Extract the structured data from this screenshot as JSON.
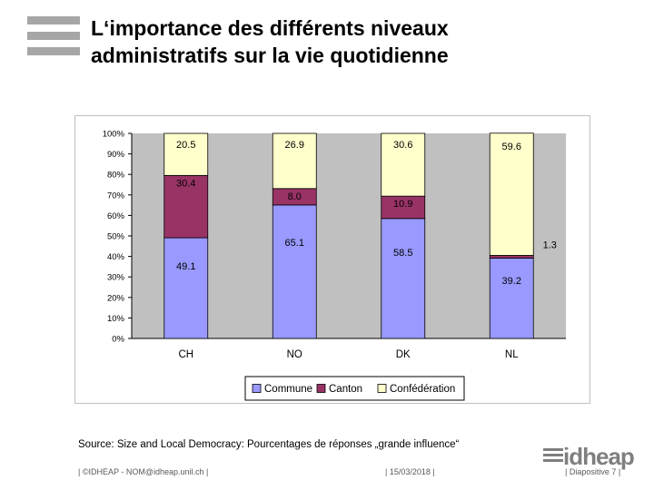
{
  "header": {
    "title_line1": "L‘importance des différents niveaux",
    "title_line2": "administratifs sur la vie quotidienne"
  },
  "chart_data": {
    "type": "bar",
    "stacked": true,
    "title": "",
    "xlabel": "",
    "ylabel": "",
    "ylim": [
      0,
      100
    ],
    "y_tick_labels": [
      "0%",
      "10%",
      "20%",
      "30%",
      "40%",
      "50%",
      "60%",
      "70%",
      "80%",
      "90%",
      "100%"
    ],
    "categories": [
      "CH",
      "NO",
      "DK",
      "NL"
    ],
    "series": [
      {
        "name": "Commune",
        "color": "#9999ff",
        "values": [
          49.1,
          65.1,
          58.5,
          39.2
        ]
      },
      {
        "name": "Canton",
        "color": "#993366",
        "values": [
          30.4,
          8.0,
          10.9,
          1.3
        ]
      },
      {
        "name": "Confédération",
        "color": "#ffffcc",
        "values": [
          20.5,
          26.9,
          30.6,
          59.6
        ]
      }
    ],
    "data_labels": [
      [
        "49.1",
        "65.1",
        "58.5",
        "39.2"
      ],
      [
        "30.4",
        "8.0",
        "10.9",
        "1.3"
      ],
      [
        "20.5",
        "26.9",
        "30.6",
        "59.6"
      ]
    ],
    "grid": false,
    "legend_position": "bottom"
  },
  "source_text": "Source: Size and Local Democracy: Pourcentages de réponses „grande influence“",
  "logo_text": "idheap",
  "footer": {
    "left": "| ©IDHEAP - NOM@idheap.unil.ch |",
    "middle": "| 15/03/2018 |",
    "right": "| Diapositive 7 |"
  }
}
